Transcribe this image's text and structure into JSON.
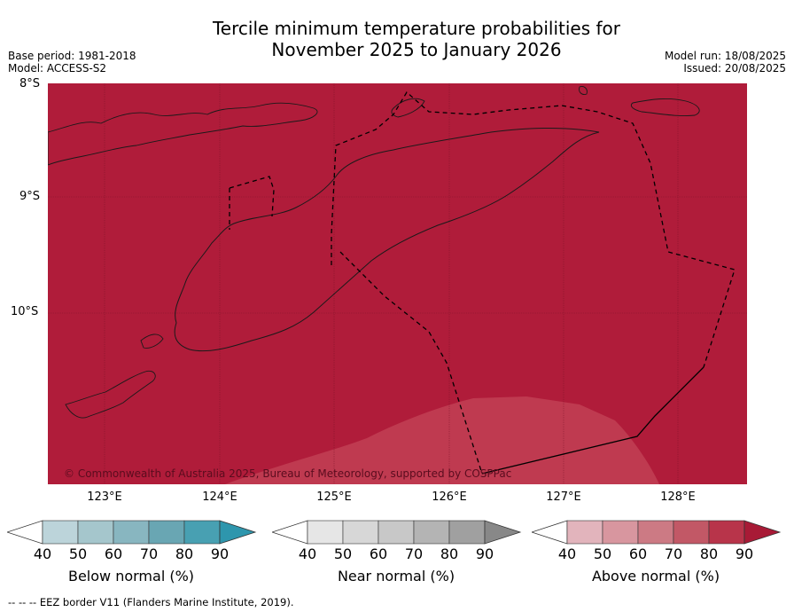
{
  "title": {
    "line1": "Tercile minimum temperature probabilities for",
    "line2": "November 2025 to January 2026"
  },
  "meta": {
    "base_period": "Base period: 1981-2018",
    "model": "Model: ACCESS-S2",
    "model_run": "Model run: 18/08/2025",
    "issued": "Issued: 20/08/2025"
  },
  "map": {
    "latitudes": [
      "8°S",
      "9°S",
      "10°S"
    ],
    "longitudes": [
      "123°E",
      "124°E",
      "125°E",
      "126°E",
      "127°E",
      "128°E"
    ],
    "copyright": "© Commonwealth of Australia 2025, Bureau of Meteorology, supported by COSPPac",
    "colors": {
      "above_normal_90": "#b01c3a",
      "above_normal_80": "#bf3a50",
      "land_line": "#1a1a1a"
    }
  },
  "colorbars": [
    {
      "label": "Below normal (%)",
      "ticks": [
        "40",
        "50",
        "60",
        "70",
        "80",
        "90"
      ],
      "colors": [
        "#bcd4da",
        "#a5c6cc",
        "#88b6c0",
        "#69a6b3",
        "#48a0b2",
        "#2e96ad"
      ]
    },
    {
      "label": "Near normal (%)",
      "ticks": [
        "40",
        "50",
        "60",
        "70",
        "80",
        "90"
      ],
      "colors": [
        "#e6e6e6",
        "#d7d7d7",
        "#c8c8c8",
        "#b4b4b4",
        "#a0a0a0",
        "#888888"
      ]
    },
    {
      "label": "Above normal (%)",
      "ticks": [
        "40",
        "50",
        "60",
        "70",
        "80",
        "90"
      ],
      "colors": [
        "#e2b4bc",
        "#d8969f",
        "#cc7a84",
        "#c25866",
        "#b8344a",
        "#a81a36"
      ]
    }
  ],
  "footnote": "--  --  -- EEZ border V11 (Flanders Marine Institute, 2019)."
}
